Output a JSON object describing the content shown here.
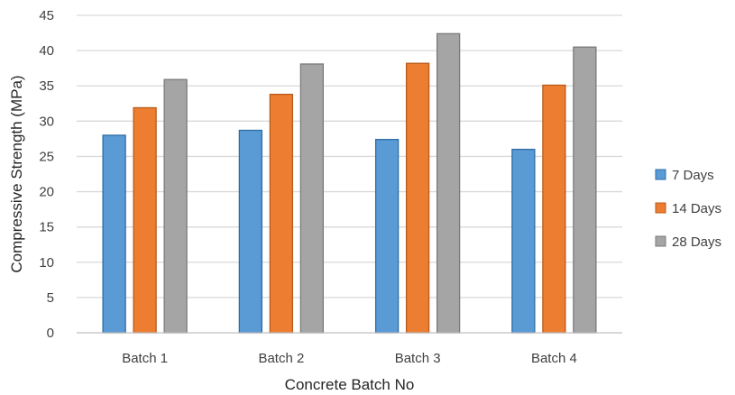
{
  "chart_data": {
    "type": "bar",
    "categories": [
      "Batch 1",
      "Batch 2",
      "Batch 3",
      "Batch 4"
    ],
    "series": [
      {
        "name": "7 Days",
        "values": [
          28.0,
          28.7,
          27.4,
          26.0
        ],
        "color": "#5b9bd5",
        "stroke": "#2e6ca6"
      },
      {
        "name": "14 Days",
        "values": [
          31.9,
          33.8,
          38.2,
          35.1
        ],
        "color": "#ed7d31",
        "stroke": "#b85b1c"
      },
      {
        "name": "28 Days",
        "values": [
          35.9,
          38.1,
          42.4,
          40.5
        ],
        "color": "#a5a5a5",
        "stroke": "#7a7a7a"
      }
    ],
    "xlabel": "Concrete Batch No",
    "ylabel": "Compressive Strength (MPa)",
    "ylim": [
      0,
      45
    ],
    "yticks": [
      0,
      5,
      10,
      15,
      20,
      25,
      30,
      35,
      40,
      45
    ],
    "grid": true,
    "legend": "right"
  }
}
